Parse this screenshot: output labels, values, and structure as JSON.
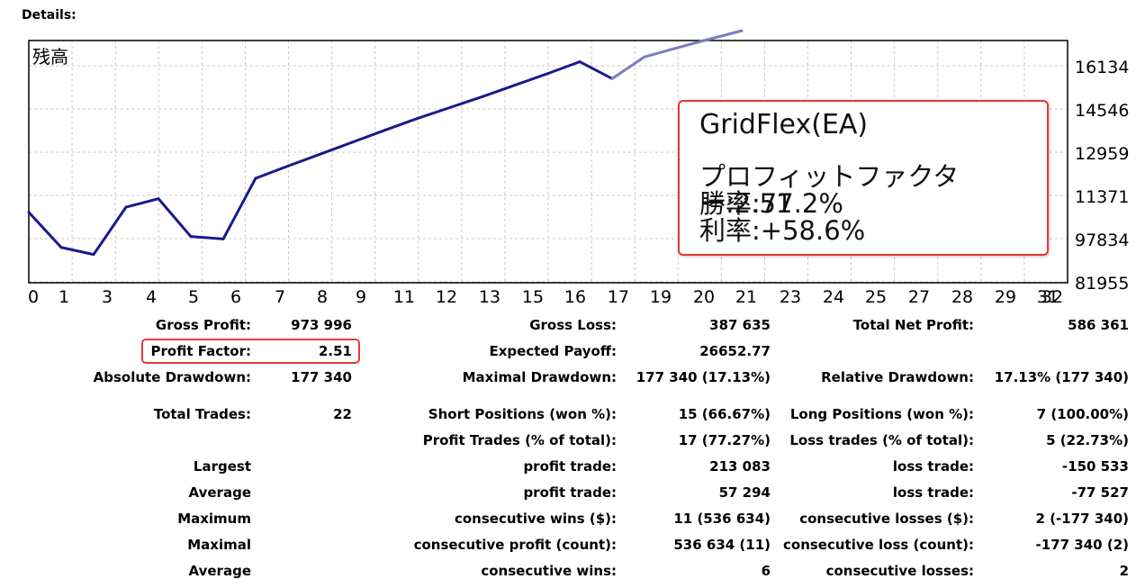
{
  "details_label": "Details:",
  "chart_data": {
    "type": "line",
    "title": "残高",
    "x_ticks": [
      "0",
      "1",
      "3",
      "4",
      "5",
      "6",
      "7",
      "8",
      "9",
      "11",
      "12",
      "13",
      "15",
      "16",
      "17",
      "19",
      "20",
      "21",
      "23",
      "24",
      "25",
      "27",
      "28",
      "29",
      "31",
      "32"
    ],
    "y_ticks": [
      "16134",
      "14546",
      "12959",
      "11371",
      "97834",
      "81955"
    ],
    "series": [
      {
        "x": [
          0,
          1,
          2,
          3,
          4,
          5,
          6,
          7,
          8,
          9,
          10,
          11,
          12,
          13,
          14,
          15,
          16,
          17,
          18,
          19,
          20,
          21,
          22
        ],
        "y": [
          10750000,
          9460000,
          9200000,
          10940000,
          11250000,
          9860000,
          9770000,
          12000000,
          12450000,
          12890000,
          13330000,
          13770000,
          14200000,
          14600000,
          15000000,
          15420000,
          15840000,
          16280000,
          15660000,
          16460000,
          16790000,
          17110000,
          17420000
        ]
      }
    ],
    "line_color": "#1a1a8c",
    "grid": true
  },
  "annotation": {
    "title": "GridFlex(EA)",
    "line1": "プロフィットファクター:2.51",
    "line2": "勝率:77.2%",
    "line3": "利率:+58.6%"
  },
  "stats": {
    "gross_profit": {
      "label": "Gross Profit:",
      "value": "973 996"
    },
    "gross_loss": {
      "label": "Gross Loss:",
      "value": "387 635"
    },
    "total_net_profit": {
      "label": "Total Net Profit:",
      "value": "586 361"
    },
    "profit_factor": {
      "label": "Profit Factor:",
      "value": "2.51"
    },
    "expected_payoff": {
      "label": "Expected Payoff:",
      "value": "26652.77"
    },
    "absolute_drawdown": {
      "label": "Absolute Drawdown:",
      "value": "177 340"
    },
    "maximal_drawdown": {
      "label": "Maximal Drawdown:",
      "value": "177 340 (17.13%)"
    },
    "relative_drawdown": {
      "label": "Relative Drawdown:",
      "value": "17.13% (177 340)"
    },
    "total_trades": {
      "label": "Total Trades:",
      "value": "22"
    },
    "short_positions": {
      "label": "Short Positions (won %):",
      "value": "15 (66.67%)"
    },
    "long_positions": {
      "label": "Long Positions (won %):",
      "value": "7 (100.00%)"
    },
    "profit_trades": {
      "label": "Profit Trades (% of total):",
      "value": "17 (77.27%)"
    },
    "loss_trades": {
      "label": "Loss trades (% of total):",
      "value": "5 (22.73%)"
    },
    "largest": {
      "label": "Largest",
      "profit_label": "profit trade:",
      "profit_value": "213 083",
      "loss_label": "loss trade:",
      "loss_value": "-150 533"
    },
    "average": {
      "label": "Average",
      "profit_label": "profit trade:",
      "profit_value": "57 294",
      "loss_label": "loss trade:",
      "loss_value": "-77 527"
    },
    "maximum": {
      "label": "Maximum",
      "profit_label": "consecutive wins ($):",
      "profit_value": "11 (536 634)",
      "loss_label": "consecutive losses ($):",
      "loss_value": "2 (-177 340)"
    },
    "maximal": {
      "label": "Maximal",
      "profit_label": "consecutive profit (count):",
      "profit_value": "536 634 (11)",
      "loss_label": "consecutive loss (count):",
      "loss_value": "-177 340 (2)"
    },
    "average2": {
      "label": "Average",
      "profit_label": "consecutive wins:",
      "profit_value": "6",
      "loss_label": "consecutive losses:",
      "loss_value": "2"
    }
  }
}
